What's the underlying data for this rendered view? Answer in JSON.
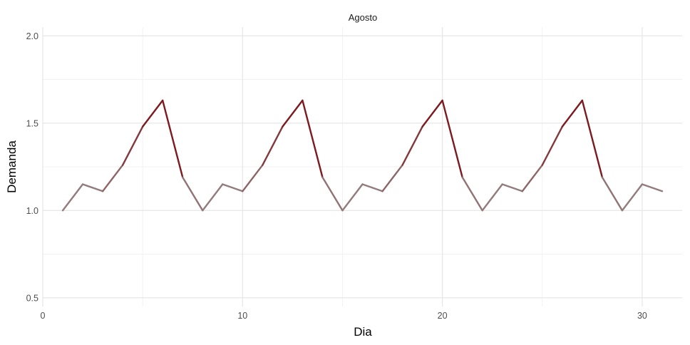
{
  "chart_data": {
    "type": "line",
    "facet_title": "Agosto",
    "xlabel": "Dia",
    "ylabel": "Demanda",
    "xlim": [
      0,
      32
    ],
    "ylim": [
      0.45,
      2.05
    ],
    "x_ticks": [
      0,
      10,
      20,
      30
    ],
    "x_tick_labels": [
      "0",
      "10",
      "20",
      "30"
    ],
    "x_minor_ticks": [
      5,
      15,
      25
    ],
    "y_ticks": [
      0.5,
      1.0,
      1.5,
      2.0
    ],
    "y_tick_labels": [
      "0.5",
      "1.0",
      "1.5",
      "2.0"
    ],
    "y_minor_ticks": [
      0.75,
      1.25,
      1.75
    ],
    "grid": true,
    "legend": "none",
    "color_low": "#9a9a9a",
    "color_high": "#7d1a1f",
    "series": [
      {
        "x": [
          1,
          2,
          3,
          4,
          5,
          6,
          7,
          8,
          9,
          10,
          11,
          12,
          13,
          14,
          15,
          16,
          17,
          18,
          19,
          20,
          21,
          22,
          23,
          24,
          25,
          26,
          27,
          28,
          29,
          30,
          31
        ],
        "values": [
          1.0,
          1.15,
          1.11,
          1.26,
          1.48,
          1.63,
          1.19,
          1.0,
          1.15,
          1.11,
          1.26,
          1.48,
          1.63,
          1.19,
          1.0,
          1.15,
          1.11,
          1.26,
          1.48,
          1.63,
          1.19,
          1.0,
          1.15,
          1.11,
          1.26,
          1.48,
          1.63,
          1.19,
          1.0,
          1.15,
          1.11
        ]
      }
    ]
  }
}
